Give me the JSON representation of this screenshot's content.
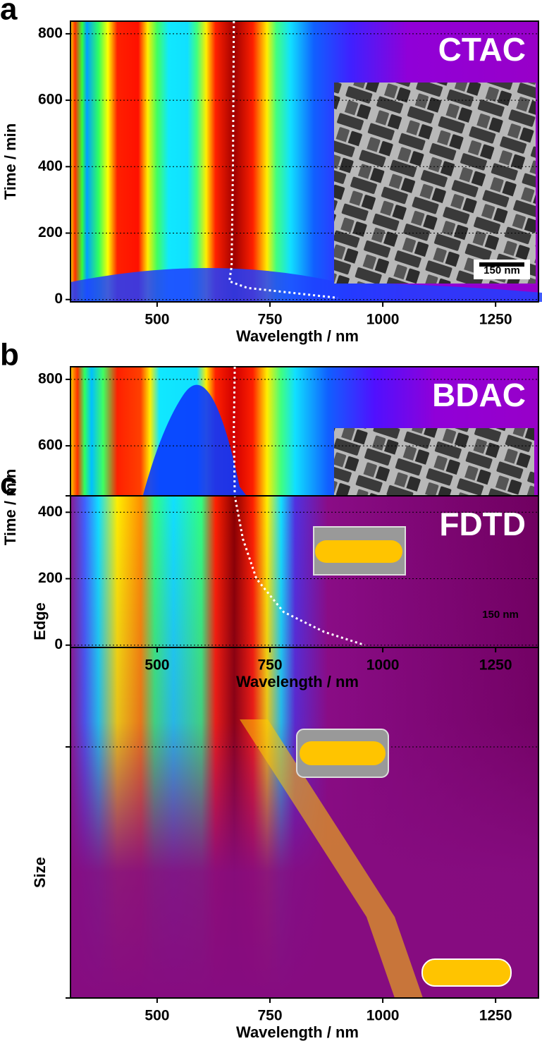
{
  "chart_data": [
    {
      "type": "heatmap",
      "panel_label": "a",
      "title": "CTAC",
      "xlabel": "Wavelength / nm",
      "ylabel": "Time / min",
      "xlim": [
        308,
        1345
      ],
      "xticks": [
        500,
        750,
        1000,
        1250
      ],
      "ylim": [
        -7,
        838
      ],
      "yticks": [
        0,
        200,
        400,
        600,
        800
      ],
      "grid": true,
      "inset_label": "150 nm",
      "line_color": "#ffffff",
      "line": {
        "x": [
          670,
          668,
          665,
          660,
          700,
          800,
          900
        ],
        "y": [
          838,
          400,
          100,
          55,
          35,
          20,
          5
        ]
      }
    },
    {
      "type": "heatmap",
      "panel_label": "b",
      "title": "BDAC",
      "xlabel": "Wavelength / nm",
      "ylabel": "Time / min",
      "xlim": [
        308,
        1345
      ],
      "xticks": [
        500,
        750,
        1000,
        1250
      ],
      "ylim": [
        -7,
        838
      ],
      "yticks": [
        0,
        200,
        400,
        600,
        800
      ],
      "grid": true,
      "inset_label": "150 nm",
      "line_color": "#ffffff",
      "line": {
        "x": [
          672,
          670,
          672,
          690,
          720,
          780,
          870,
          960
        ],
        "y": [
          838,
          650,
          450,
          320,
          200,
          100,
          40,
          0
        ]
      }
    },
    {
      "type": "heatmap",
      "panel_label": "c",
      "title": "FDTD",
      "xlabel": "Wavelength / nm",
      "xlim": [
        308,
        1345
      ],
      "xticks": [
        500,
        750,
        1000,
        1250
      ],
      "y_categories": [
        "Size",
        "Edge"
      ]
    }
  ]
}
